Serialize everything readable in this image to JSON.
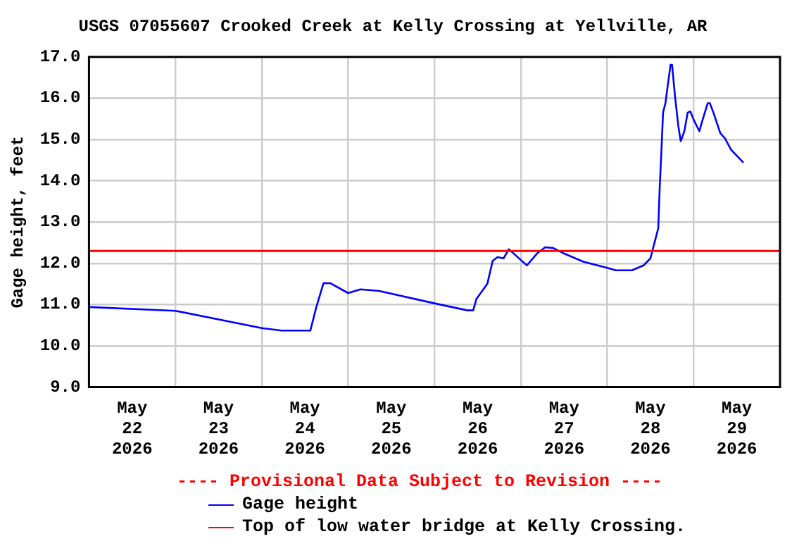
{
  "chart_data": {
    "type": "line",
    "title": "USGS 07055607 Crooked Creek at Kelly Crossing at Yellville, AR",
    "ylabel": "Gage height, feet",
    "series": [
      {
        "name": "Gage height",
        "color": "#0000ff",
        "x": [
          "2026-05-22T00:00",
          "2026-05-23T00:00",
          "2026-05-24T00:00",
          "2026-05-24T05:30",
          "2026-05-24T13:30",
          "2026-05-24T15:10",
          "2026-05-24T17:10",
          "2026-05-24T19:00",
          "2026-05-25T00:00",
          "2026-05-25T03:25",
          "2026-05-25T08:35",
          "2026-05-26T00:00",
          "2026-05-26T09:10",
          "2026-05-26T10:45",
          "2026-05-26T11:40",
          "2026-05-26T14:40",
          "2026-05-26T16:10",
          "2026-05-26T17:30",
          "2026-05-26T19:10",
          "2026-05-26T20:40",
          "2026-05-27T00:00",
          "2026-05-27T01:40",
          "2026-05-27T04:25",
          "2026-05-27T06:45",
          "2026-05-27T09:00",
          "2026-05-27T12:10",
          "2026-05-27T17:20",
          "2026-05-28T00:00",
          "2026-05-28T02:25",
          "2026-05-28T06:50",
          "2026-05-28T10:05",
          "2026-05-28T12:00",
          "2026-05-28T13:20",
          "2026-05-28T14:10",
          "2026-05-28T14:35",
          "2026-05-28T15:00",
          "2026-05-28T15:30",
          "2026-05-28T16:10",
          "2026-05-28T16:50",
          "2026-05-28T17:35",
          "2026-05-28T18:00",
          "2026-05-28T18:50",
          "2026-05-28T19:45",
          "2026-05-28T20:25",
          "2026-05-28T21:25",
          "2026-05-28T22:20",
          "2026-05-28T23:05",
          "2026-05-29T00:00",
          "2026-05-29T01:35",
          "2026-05-29T02:30",
          "2026-05-29T03:55",
          "2026-05-29T04:30",
          "2026-05-29T05:30",
          "2026-05-29T07:25",
          "2026-05-29T08:40",
          "2026-05-29T10:25",
          "2026-05-29T13:50"
        ],
        "values": [
          10.94,
          10.85,
          10.43,
          10.37,
          10.37,
          10.94,
          11.52,
          11.52,
          11.28,
          11.37,
          11.33,
          11.03,
          10.86,
          10.86,
          11.14,
          11.5,
          12.06,
          12.15,
          12.12,
          12.34,
          12.08,
          11.95,
          12.23,
          12.39,
          12.37,
          12.23,
          12.04,
          11.89,
          11.83,
          11.83,
          11.95,
          12.12,
          12.57,
          12.85,
          13.86,
          14.64,
          15.65,
          15.88,
          16.33,
          16.81,
          16.81,
          16.04,
          15.32,
          14.96,
          15.2,
          15.65,
          15.68,
          15.48,
          15.2,
          15.48,
          15.88,
          15.88,
          15.65,
          15.15,
          15.03,
          14.75,
          14.44
        ]
      }
    ],
    "ref_lines": [
      {
        "axis": "y",
        "value": 12.3,
        "label": "Top of low water bridge at Kelly Crossing.",
        "color": "#ff0000"
      }
    ],
    "annotations": [
      "---- Provisional Data Subject to Revision ----"
    ],
    "xlim": [
      "2026-05-22T00:00",
      "2026-05-30T00:00"
    ],
    "xticks": [
      {
        "value": "2026-05-22T12:00",
        "label": "May 22 2026"
      },
      {
        "value": "2026-05-23T00:00",
        "label": null
      },
      {
        "value": "2026-05-23T12:00",
        "label": "May 23 2026"
      },
      {
        "value": "2026-05-24T00:00",
        "label": null
      },
      {
        "value": "2026-05-24T12:00",
        "label": "May 24 2026"
      },
      {
        "value": "2026-05-25T00:00",
        "label": null
      },
      {
        "value": "2026-05-25T12:00",
        "label": "May 25 2026"
      },
      {
        "value": "2026-05-26T00:00",
        "label": null
      },
      {
        "value": "2026-05-26T12:00",
        "label": "May 26 2026"
      },
      {
        "value": "2026-05-27T00:00",
        "label": null
      },
      {
        "value": "2026-05-27T12:00",
        "label": "May 27 2026"
      },
      {
        "value": "2026-05-28T00:00",
        "label": null
      },
      {
        "value": "2026-05-28T12:00",
        "label": "May 28 2026"
      },
      {
        "value": "2026-05-29T00:00",
        "label": null
      },
      {
        "value": "2026-05-29T12:00",
        "label": "May 29 2026"
      }
    ],
    "ylim": [
      9,
      17
    ],
    "yticks": [
      {
        "value": 9,
        "label": "9.0"
      },
      {
        "value": 10,
        "label": "10.0"
      },
      {
        "value": 11,
        "label": "11.0"
      },
      {
        "value": 12,
        "label": "12.0"
      },
      {
        "value": 13,
        "label": "13.0"
      },
      {
        "value": 14,
        "label": "14.0"
      },
      {
        "value": 15,
        "label": "15.0"
      },
      {
        "value": 16,
        "label": "16.0"
      },
      {
        "value": 17,
        "label": "17.0"
      }
    ],
    "grid": true,
    "legend": "bottom",
    "marker": "none",
    "line_style": "solid"
  }
}
